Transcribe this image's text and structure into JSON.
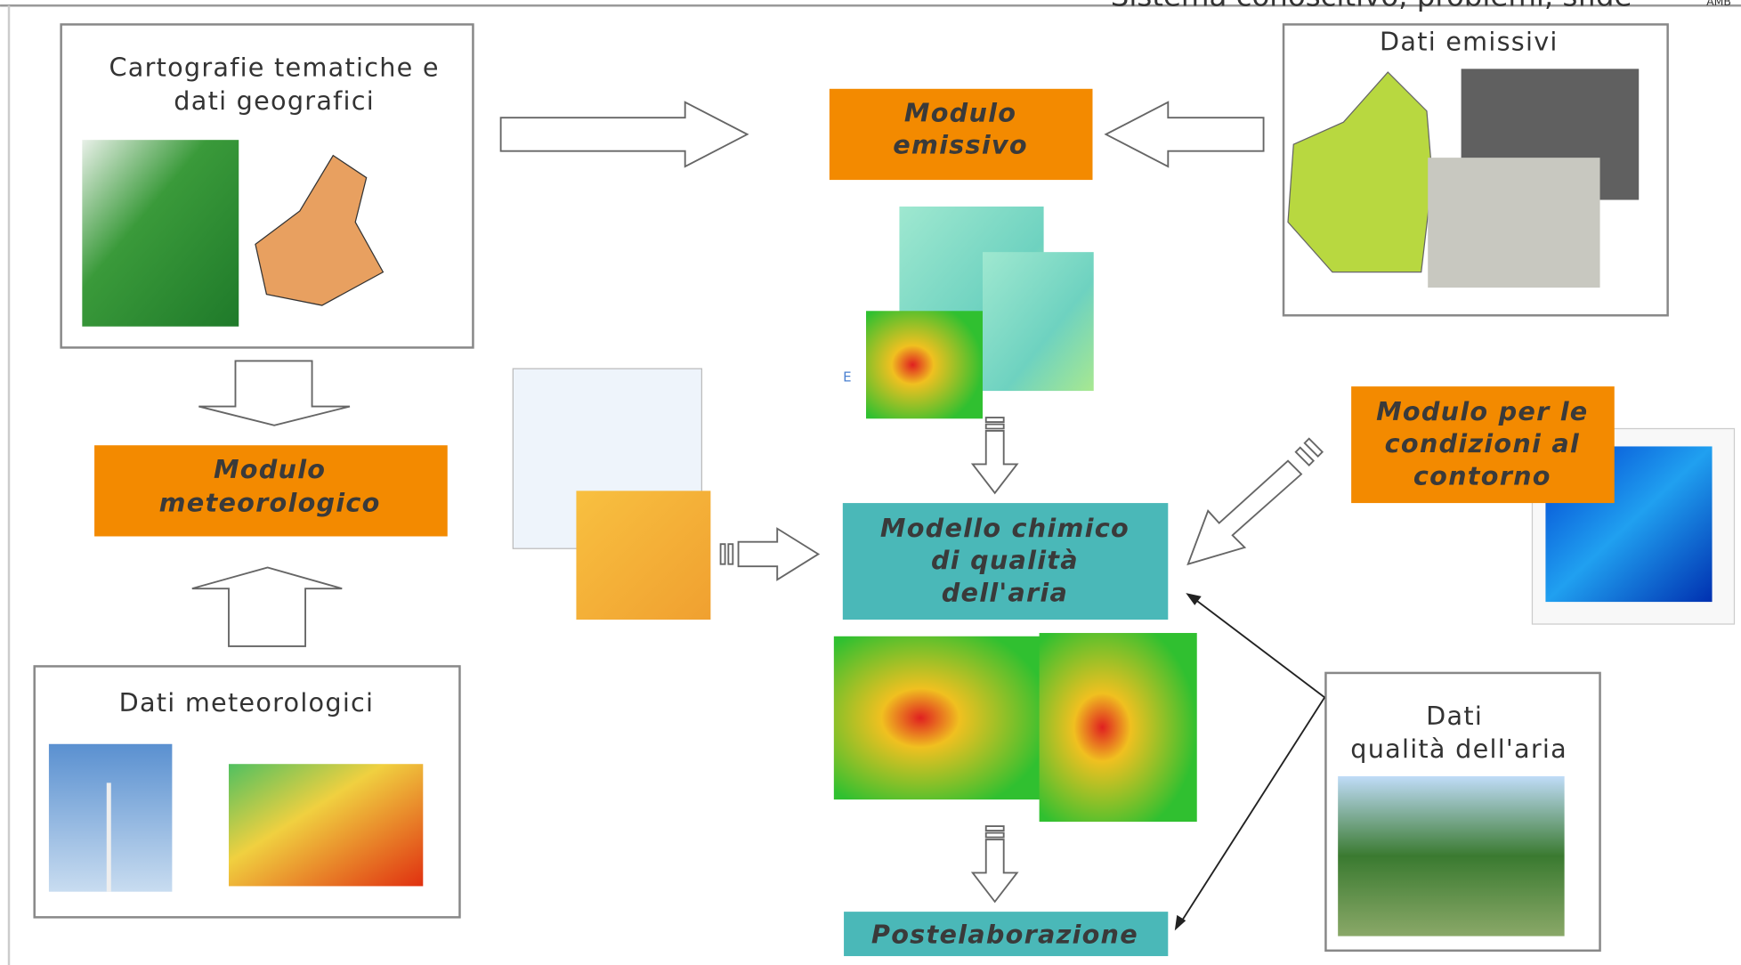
{
  "header": {
    "title": "Sistema conoscitivo, problemi, sfide",
    "logo": "AMB"
  },
  "nodes": [
    {
      "lines": [
        "Cartografie tematiche e",
        "dati geografici"
      ]
    },
    {
      "lines": [
        "Modulo",
        "emissivo"
      ]
    },
    {
      "lines": [
        "Dati emissivi"
      ]
    },
    {
      "lines": [
        "Modulo",
        "meteorologico"
      ]
    },
    {
      "lines": [
        "Modulo per le",
        "condizioni al",
        "contorno"
      ]
    },
    {
      "lines": [
        "Modello chimico",
        "di qualità",
        "dell'aria"
      ]
    },
    {
      "lines": [
        "Dati meteorologici"
      ]
    },
    {
      "lines": [
        "Dati",
        "qualità dell'aria"
      ]
    },
    {
      "lines": [
        "Postelaborazione"
      ]
    }
  ],
  "map_label": "E"
}
